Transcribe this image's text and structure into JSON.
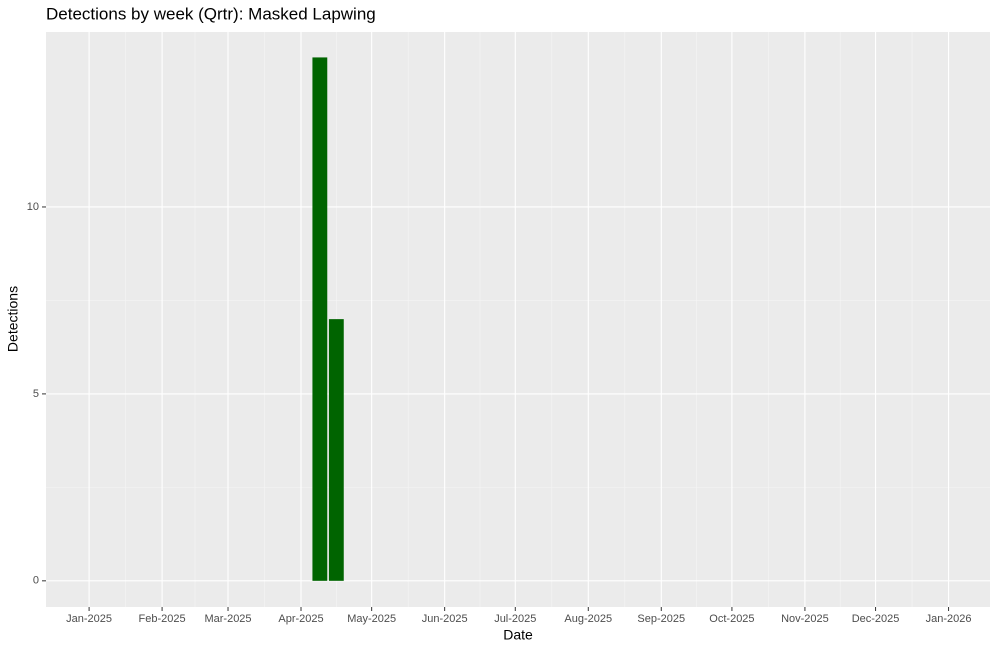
{
  "chart_data": {
    "type": "bar",
    "title": "Detections by week (Qrtr): Masked Lapwing",
    "xlabel": "Date",
    "ylabel": "Detections",
    "x": [
      98,
      105
    ],
    "values": [
      14,
      7
    ],
    "color": "#006400",
    "xlim": [
      -18.3,
      382.6
    ],
    "xticks": [
      {
        "value": 0,
        "label": "Jan-2025"
      },
      {
        "value": 31,
        "label": "Feb-2025"
      },
      {
        "value": 59,
        "label": "Mar-2025"
      },
      {
        "value": 90,
        "label": "Apr-2025"
      },
      {
        "value": 120,
        "label": "May-2025"
      },
      {
        "value": 151,
        "label": "Jun-2025"
      },
      {
        "value": 181,
        "label": "Jul-2025"
      },
      {
        "value": 212,
        "label": "Aug-2025"
      },
      {
        "value": 243,
        "label": "Sep-2025"
      },
      {
        "value": 273,
        "label": "Oct-2025"
      },
      {
        "value": 304,
        "label": "Nov-2025"
      },
      {
        "value": 334,
        "label": "Dec-2025"
      },
      {
        "value": 365,
        "label": "Jan-2026"
      }
    ],
    "ylim": [
      -0.7,
      14.68
    ],
    "yticks": [
      0,
      5,
      10
    ],
    "grid": true
  }
}
